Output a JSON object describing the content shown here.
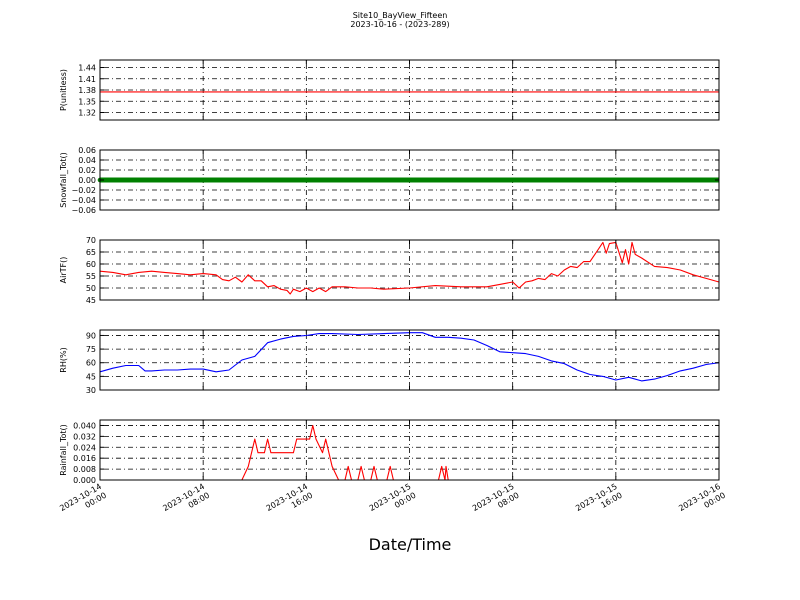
{
  "figure": {
    "title": "Site10_BayView_Fifteen",
    "subtitle": "2023-10-16 - (2023-289)",
    "xlabel": "Date/Time"
  },
  "chart_data": [
    {
      "type": "line",
      "ylabel": "P(unitless)",
      "ylim": [
        1.3,
        1.46
      ],
      "yticks": [
        1.32,
        1.35,
        1.38,
        1.41,
        1.44
      ],
      "ytick_labels": [
        "1.32",
        "1.35",
        "1.38",
        "1.41",
        "1.44"
      ],
      "color": "#ff0000",
      "grid": true,
      "series": [
        {
          "points": [
            [
              "2023-10-14 00:00",
              1.375
            ],
            [
              "2023-10-16 00:00",
              1.375
            ]
          ]
        }
      ]
    },
    {
      "type": "line",
      "ylabel": "Snowfall_Tot()",
      "ylim": [
        -0.06,
        0.06
      ],
      "yticks": [
        -0.06,
        -0.04,
        -0.02,
        0.0,
        0.02,
        0.04,
        0.06
      ],
      "ytick_labels": [
        "−0.06",
        "−0.04",
        "−0.02",
        "0.00",
        "0.02",
        "0.04",
        "0.06"
      ],
      "color": "#008000",
      "markers": true,
      "grid": true,
      "series": [
        {
          "points": [
            [
              "2023-10-14 00:00",
              0.0
            ],
            [
              "2023-10-16 00:00",
              0.0
            ]
          ]
        }
      ]
    },
    {
      "type": "line",
      "ylabel": "AirTF()",
      "ylim": [
        45,
        70
      ],
      "yticks": [
        45,
        50,
        55,
        60,
        65,
        70
      ],
      "ytick_labels": [
        "45",
        "50",
        "55",
        "60",
        "65",
        "70"
      ],
      "color": "#ff0000",
      "grid": true,
      "series": [
        {
          "points": [
            [
              "2023-10-14 00:00",
              57.0
            ],
            [
              "2023-10-14 01:00",
              56.5
            ],
            [
              "2023-10-14 02:00",
              55.5
            ],
            [
              "2023-10-14 03:00",
              56.5
            ],
            [
              "2023-10-14 04:00",
              57.0
            ],
            [
              "2023-10-14 05:00",
              56.5
            ],
            [
              "2023-10-14 06:00",
              56.0
            ],
            [
              "2023-10-14 07:00",
              55.5
            ],
            [
              "2023-10-14 08:00",
              56.0
            ],
            [
              "2023-10-14 09:00",
              55.5
            ],
            [
              "2023-10-14 09:30",
              53.5
            ],
            [
              "2023-10-14 10:00",
              53.0
            ],
            [
              "2023-10-14 10:30",
              54.5
            ],
            [
              "2023-10-14 11:00",
              52.5
            ],
            [
              "2023-10-14 11:30",
              55.5
            ],
            [
              "2023-10-14 12:00",
              53.0
            ],
            [
              "2023-10-14 12:30",
              53.0
            ],
            [
              "2023-10-14 13:00",
              50.5
            ],
            [
              "2023-10-14 13:30",
              51.0
            ],
            [
              "2023-10-14 14:00",
              49.5
            ],
            [
              "2023-10-14 14:30",
              49.0
            ],
            [
              "2023-10-14 14:45",
              47.5
            ],
            [
              "2023-10-14 15:00",
              49.5
            ],
            [
              "2023-10-14 15:30",
              48.5
            ],
            [
              "2023-10-14 16:00",
              50.0
            ],
            [
              "2023-10-14 16:30",
              48.5
            ],
            [
              "2023-10-14 17:00",
              50.0
            ],
            [
              "2023-10-14 17:30",
              48.5
            ],
            [
              "2023-10-14 18:00",
              50.5
            ],
            [
              "2023-10-14 19:00",
              50.5
            ],
            [
              "2023-10-14 20:00",
              50.0
            ],
            [
              "2023-10-14 21:00",
              50.0
            ],
            [
              "2023-10-14 22:00",
              49.5
            ],
            [
              "2023-10-15 00:00",
              50.0
            ],
            [
              "2023-10-15 02:00",
              51.0
            ],
            [
              "2023-10-15 04:00",
              50.5
            ],
            [
              "2023-10-15 06:00",
              50.5
            ],
            [
              "2023-10-15 07:00",
              51.5
            ],
            [
              "2023-10-15 08:00",
              52.5
            ],
            [
              "2023-10-15 08:30",
              50.0
            ],
            [
              "2023-10-15 09:00",
              52.5
            ],
            [
              "2023-10-15 09:30",
              53.0
            ],
            [
              "2023-10-15 10:00",
              54.0
            ],
            [
              "2023-10-15 10:30",
              53.5
            ],
            [
              "2023-10-15 11:00",
              56.0
            ],
            [
              "2023-10-15 11:30",
              55.0
            ],
            [
              "2023-10-15 12:00",
              57.5
            ],
            [
              "2023-10-15 12:30",
              59.0
            ],
            [
              "2023-10-15 13:00",
              58.5
            ],
            [
              "2023-10-15 13:30",
              61.0
            ],
            [
              "2023-10-15 14:00",
              61.0
            ],
            [
              "2023-10-15 14:30",
              65.0
            ],
            [
              "2023-10-15 15:00",
              69.0
            ],
            [
              "2023-10-15 15:15",
              64.5
            ],
            [
              "2023-10-15 15:30",
              68.5
            ],
            [
              "2023-10-15 16:00",
              69.0
            ],
            [
              "2023-10-15 16:30",
              60.5
            ],
            [
              "2023-10-15 16:45",
              66.0
            ],
            [
              "2023-10-15 17:00",
              60.0
            ],
            [
              "2023-10-15 17:15",
              69.0
            ],
            [
              "2023-10-15 17:30",
              64.0
            ],
            [
              "2023-10-15 18:00",
              62.5
            ],
            [
              "2023-10-15 19:00",
              59.0
            ],
            [
              "2023-10-15 20:00",
              58.5
            ],
            [
              "2023-10-15 21:00",
              57.5
            ],
            [
              "2023-10-15 22:00",
              55.5
            ],
            [
              "2023-10-15 23:00",
              54.0
            ],
            [
              "2023-10-16 00:00",
              52.5
            ]
          ]
        }
      ]
    },
    {
      "type": "line",
      "ylabel": "RH(%)",
      "ylim": [
        30,
        96
      ],
      "yticks": [
        30,
        45,
        60,
        75,
        90
      ],
      "ytick_labels": [
        "30",
        "45",
        "60",
        "75",
        "90"
      ],
      "color": "#0000ff",
      "grid": true,
      "series": [
        {
          "points": [
            [
              "2023-10-14 00:00",
              50
            ],
            [
              "2023-10-14 01:00",
              54
            ],
            [
              "2023-10-14 02:00",
              57
            ],
            [
              "2023-10-14 03:00",
              57
            ],
            [
              "2023-10-14 03:30",
              51
            ],
            [
              "2023-10-14 04:00",
              51
            ],
            [
              "2023-10-14 05:00",
              52
            ],
            [
              "2023-10-14 06:00",
              52
            ],
            [
              "2023-10-14 07:00",
              53
            ],
            [
              "2023-10-14 08:00",
              53
            ],
            [
              "2023-10-14 09:00",
              50
            ],
            [
              "2023-10-14 10:00",
              52
            ],
            [
              "2023-10-14 11:00",
              63
            ],
            [
              "2023-10-14 12:00",
              67
            ],
            [
              "2023-10-14 13:00",
              82
            ],
            [
              "2023-10-14 14:00",
              86
            ],
            [
              "2023-10-14 15:00",
              89
            ],
            [
              "2023-10-14 16:00",
              90
            ],
            [
              "2023-10-14 17:00",
              92
            ],
            [
              "2023-10-14 18:00",
              92
            ],
            [
              "2023-10-14 20:00",
              91
            ],
            [
              "2023-10-14 22:00",
              92
            ],
            [
              "2023-10-15 00:00",
              93
            ],
            [
              "2023-10-15 01:00",
              93
            ],
            [
              "2023-10-15 02:00",
              88
            ],
            [
              "2023-10-15 03:00",
              88
            ],
            [
              "2023-10-15 04:00",
              87
            ],
            [
              "2023-10-15 05:00",
              85
            ],
            [
              "2023-10-15 06:00",
              79
            ],
            [
              "2023-10-15 07:00",
              72
            ],
            [
              "2023-10-15 08:00",
              71
            ],
            [
              "2023-10-15 09:00",
              70
            ],
            [
              "2023-10-15 10:00",
              67
            ],
            [
              "2023-10-15 11:00",
              62
            ],
            [
              "2023-10-15 12:00",
              59
            ],
            [
              "2023-10-15 13:00",
              52
            ],
            [
              "2023-10-15 14:00",
              47
            ],
            [
              "2023-10-15 15:00",
              45
            ],
            [
              "2023-10-15 16:00",
              41
            ],
            [
              "2023-10-15 17:00",
              44
            ],
            [
              "2023-10-15 18:00",
              40
            ],
            [
              "2023-10-15 19:00",
              42
            ],
            [
              "2023-10-15 20:00",
              46
            ],
            [
              "2023-10-15 21:00",
              51
            ],
            [
              "2023-10-15 22:00",
              54
            ],
            [
              "2023-10-15 23:00",
              58
            ],
            [
              "2023-10-16 00:00",
              60
            ]
          ]
        }
      ]
    },
    {
      "type": "line",
      "ylabel": "Rainfall_Tot()",
      "ylim": [
        0.0,
        0.044
      ],
      "yticks": [
        0.0,
        0.008,
        0.016,
        0.024,
        0.032,
        0.04
      ],
      "ytick_labels": [
        "0.000",
        "0.008",
        "0.016",
        "0.024",
        "0.032",
        "0.040"
      ],
      "color": "#ff0000",
      "grid": true,
      "series": [
        {
          "points": [
            [
              "2023-10-14 00:00",
              0.0
            ],
            [
              "2023-10-14 11:00",
              0.0
            ],
            [
              "2023-10-14 11:30",
              0.01
            ],
            [
              "2023-10-14 12:00",
              0.03
            ],
            [
              "2023-10-14 12:15",
              0.02
            ],
            [
              "2023-10-14 12:45",
              0.02
            ],
            [
              "2023-10-14 13:00",
              0.03
            ],
            [
              "2023-10-14 13:15",
              0.02
            ],
            [
              "2023-10-14 15:00",
              0.02
            ],
            [
              "2023-10-14 15:15",
              0.03
            ],
            [
              "2023-10-14 16:15",
              0.03
            ],
            [
              "2023-10-14 16:30",
              0.04
            ],
            [
              "2023-10-14 16:45",
              0.03
            ],
            [
              "2023-10-14 17:15",
              0.02
            ],
            [
              "2023-10-14 17:30",
              0.03
            ],
            [
              "2023-10-14 18:00",
              0.01
            ],
            [
              "2023-10-14 18:30",
              0.0
            ],
            [
              "2023-10-14 19:00",
              0.0
            ],
            [
              "2023-10-14 19:15",
              0.01
            ],
            [
              "2023-10-14 19:30",
              0.0
            ],
            [
              "2023-10-14 20:00",
              0.0
            ],
            [
              "2023-10-14 20:15",
              0.01
            ],
            [
              "2023-10-14 20:30",
              0.0
            ],
            [
              "2023-10-14 21:00",
              0.0
            ],
            [
              "2023-10-14 21:15",
              0.01
            ],
            [
              "2023-10-14 21:30",
              0.0
            ],
            [
              "2023-10-14 22:15",
              0.0
            ],
            [
              "2023-10-14 22:30",
              0.01
            ],
            [
              "2023-10-14 22:45",
              0.0
            ],
            [
              "2023-10-15 02:15",
              0.0
            ],
            [
              "2023-10-15 02:30",
              0.01
            ],
            [
              "2023-10-15 02:45",
              0.0
            ],
            [
              "2023-10-15 02:50",
              0.01
            ],
            [
              "2023-10-15 03:00",
              0.0
            ],
            [
              "2023-10-16 00:00",
              0.0
            ]
          ]
        }
      ]
    }
  ],
  "xaxis": {
    "min": "2023-10-14 00:00",
    "max": "2023-10-16 00:00",
    "ticks": [
      "2023-10-14 00:00",
      "2023-10-14 08:00",
      "2023-10-14 16:00",
      "2023-10-15 00:00",
      "2023-10-15 08:00",
      "2023-10-15 16:00",
      "2023-10-16 00:00"
    ],
    "tick_labels": [
      [
        "2023-10-14",
        "00:00"
      ],
      [
        "2023-10-14",
        "08:00"
      ],
      [
        "2023-10-14",
        "16:00"
      ],
      [
        "2023-10-15",
        "00:00"
      ],
      [
        "2023-10-15",
        "08:00"
      ],
      [
        "2023-10-15",
        "16:00"
      ],
      [
        "2023-10-16",
        "00:00"
      ]
    ]
  }
}
